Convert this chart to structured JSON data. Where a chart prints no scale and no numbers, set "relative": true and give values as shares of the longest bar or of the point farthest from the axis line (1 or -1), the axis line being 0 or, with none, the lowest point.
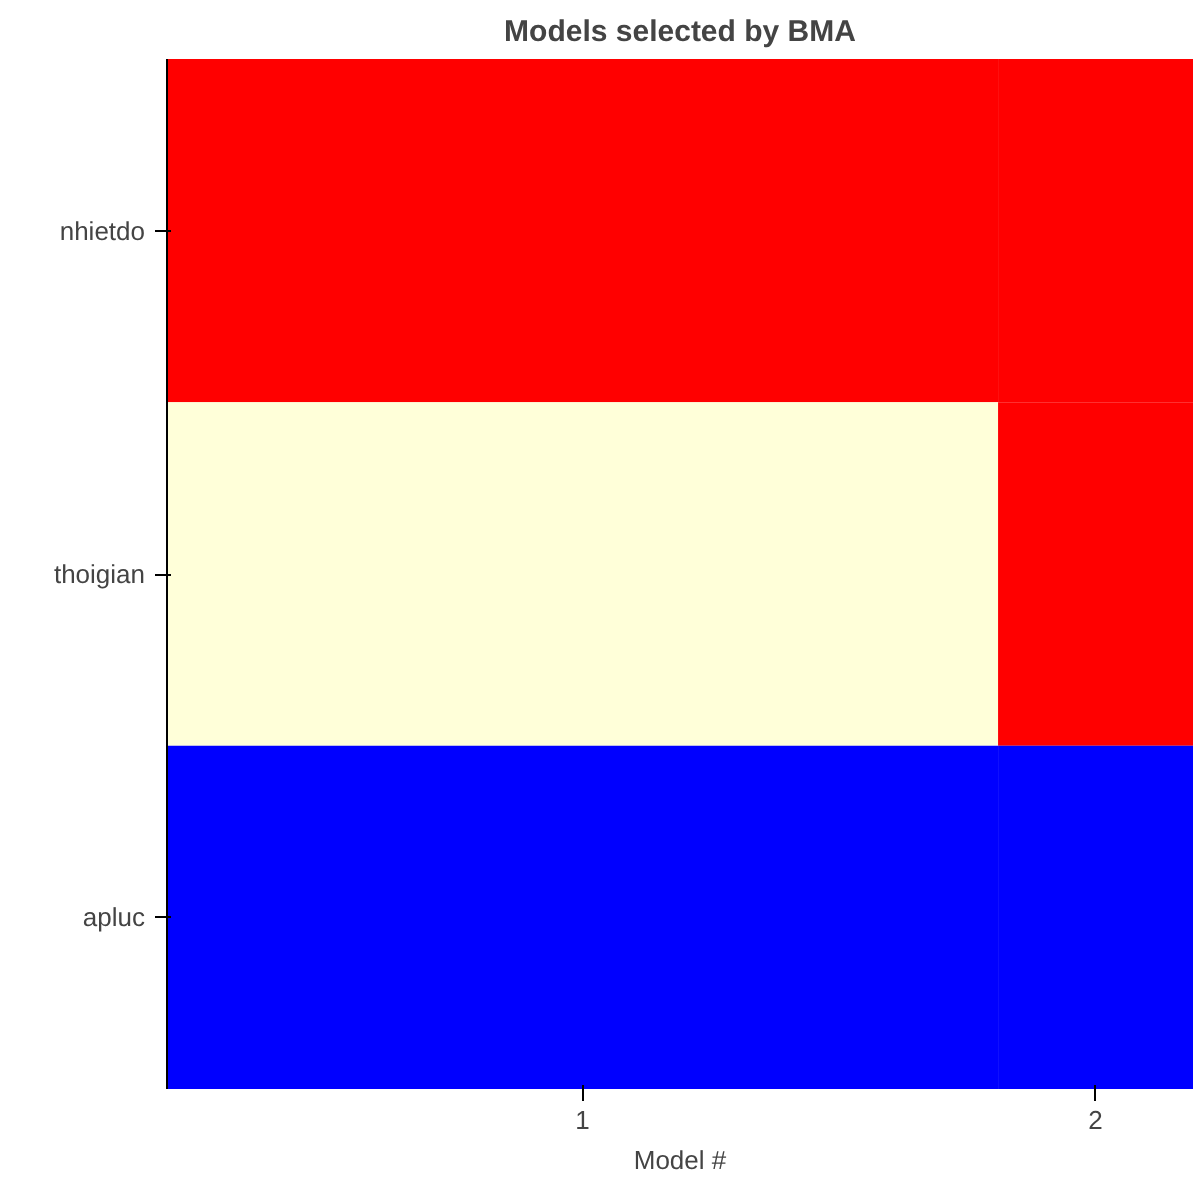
{
  "chart_data": {
    "type": "bar",
    "orientation": "horizontal",
    "stacked": true,
    "relative": true,
    "title": "Models selected by BMA",
    "xlabel": "Model #",
    "categories": [
      "nhietdo",
      "thoigian",
      "apluc"
    ],
    "series": [
      {
        "name": "1",
        "colors": [
          "#ff0000",
          "#ffffd9",
          "#0000ff"
        ],
        "values": [
          0.81,
          0.81,
          0.81
        ]
      },
      {
        "name": "2",
        "colors": [
          "#ff0000",
          "#ff0000",
          "#0000ff"
        ],
        "values": [
          0.19,
          0.19,
          0.19
        ]
      }
    ]
  }
}
